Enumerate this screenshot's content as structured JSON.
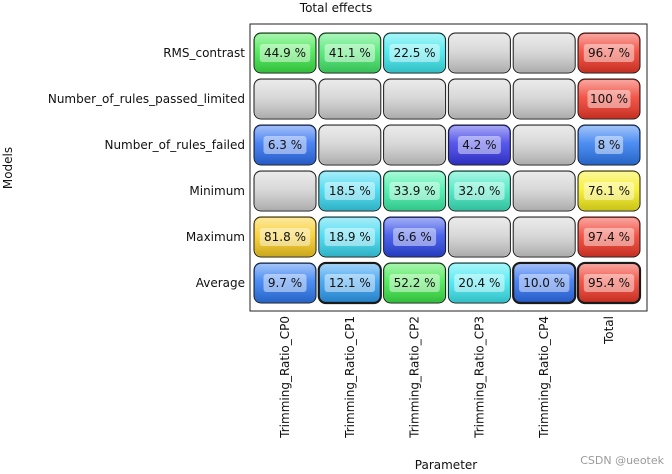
{
  "chart_data": {
    "type": "heatmap",
    "title": "Total effects",
    "xlabel": "Parameter",
    "ylabel": "Models",
    "columns": [
      "Trimming_Ratio_CP0",
      "Trimming_Ratio_CP1",
      "Trimming_Ratio_CP2",
      "Trimming_Ratio_CP3",
      "Trimming_Ratio_CP4",
      "Total"
    ],
    "rows": [
      "RMS_contrast",
      "Number_of_rules_passed_limited",
      "Number_of_rules_failed",
      "Minimum",
      "Maximum",
      "Average"
    ],
    "values": [
      [
        44.9,
        41.1,
        22.5,
        null,
        null,
        96.7
      ],
      [
        null,
        null,
        null,
        null,
        null,
        100
      ],
      [
        6.3,
        null,
        null,
        4.2,
        null,
        8
      ],
      [
        null,
        18.5,
        33.9,
        32.0,
        null,
        76.1
      ],
      [
        81.8,
        18.9,
        6.6,
        null,
        null,
        97.4
      ],
      [
        9.7,
        12.1,
        52.2,
        20.4,
        10.0,
        95.4
      ]
    ],
    "labels": [
      [
        "44.9 %",
        "41.1 %",
        "22.5 %",
        "",
        "",
        "96.7 %"
      ],
      [
        "",
        "",
        "",
        "",
        "",
        "100 %"
      ],
      [
        "6.3 %",
        "",
        "",
        "4.2 %",
        "",
        "8 %"
      ],
      [
        "",
        "18.5 %",
        "33.9 %",
        "32.0 %",
        "",
        "76.1 %"
      ],
      [
        "81.8 %",
        "18.9 %",
        "6.6 %",
        "",
        "",
        "97.4 %"
      ],
      [
        "9.7 %",
        "12.1 %",
        "52.2 %",
        "20.4 %",
        "10.0 %",
        "95.4 %"
      ]
    ],
    "colors": [
      [
        "#3ee84a",
        "#44e86a",
        "#3ee8ee",
        "#d2d2d2",
        "#d2d2d2",
        "#f03a2a"
      ],
      [
        "#d2d2d2",
        "#d2d2d2",
        "#d2d2d2",
        "#d2d2d2",
        "#d2d2d2",
        "#f03a2a"
      ],
      [
        "#2f6ff0",
        "#d2d2d2",
        "#d2d2d2",
        "#3a3ae8",
        "#d2d2d2",
        "#2f7af0"
      ],
      [
        "#d2d2d2",
        "#3ad8f0",
        "#3ef0a8",
        "#3ee8c0",
        "#d2d2d2",
        "#f6ee1e"
      ],
      [
        "#f8cc22",
        "#3ad8f0",
        "#2f4ae8",
        "#d2d2d2",
        "#d2d2d2",
        "#f03a2a"
      ],
      [
        "#2f7af0",
        "#2f9cf0",
        "#3ee84a",
        "#3ee8f0",
        "#2f6ff0",
        "#f03a2a"
      ]
    ],
    "highlighted_row": "Average"
  },
  "watermark": "CSDN @ueotek"
}
